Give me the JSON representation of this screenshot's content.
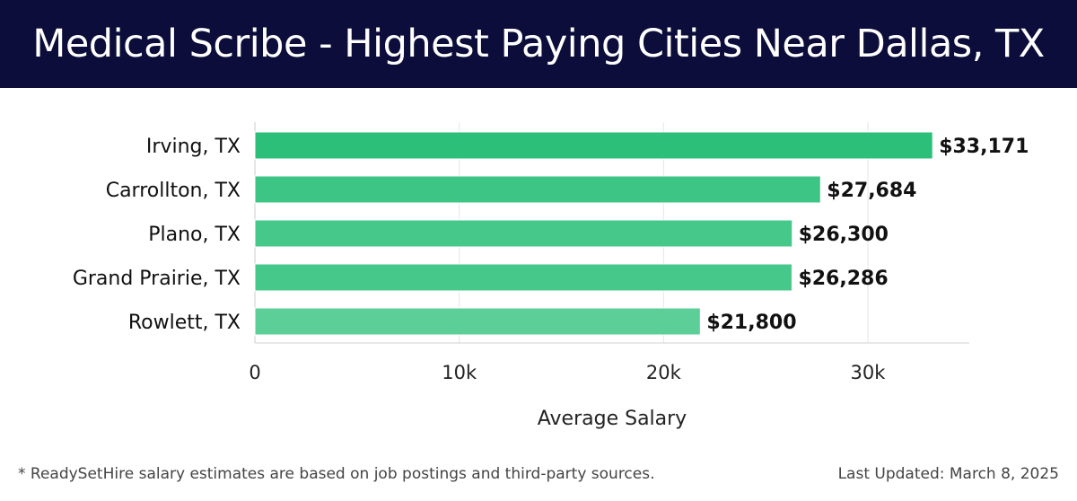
{
  "header": {
    "title": "Medical Scribe - Highest Paying Cities Near Dallas, TX"
  },
  "chart_data": {
    "type": "bar",
    "orientation": "horizontal",
    "categories": [
      "Irving, TX",
      "Carrollton, TX",
      "Plano, TX",
      "Grand Prairie, TX",
      "Rowlett, TX"
    ],
    "values": [
      33171,
      27684,
      26300,
      26286,
      21800
    ],
    "value_labels": [
      "$33,171",
      "$27,684",
      "$26,300",
      "$26,286",
      "$21,800"
    ],
    "xlabel": "Average Salary",
    "ylabel": "",
    "xlim": [
      0,
      35000
    ],
    "xticks": [
      0,
      10000,
      20000,
      30000
    ],
    "xtick_labels": [
      "0",
      "10k",
      "20k",
      "30k"
    ],
    "grid": true,
    "colors": [
      "#2bbf7a",
      "#3cc585",
      "#45c88a",
      "#45c88a",
      "#5bcf97"
    ]
  },
  "footer": {
    "note": "* ReadySetHire salary estimates are based on job postings and third-party sources.",
    "updated": "Last Updated: March 8, 2025"
  }
}
